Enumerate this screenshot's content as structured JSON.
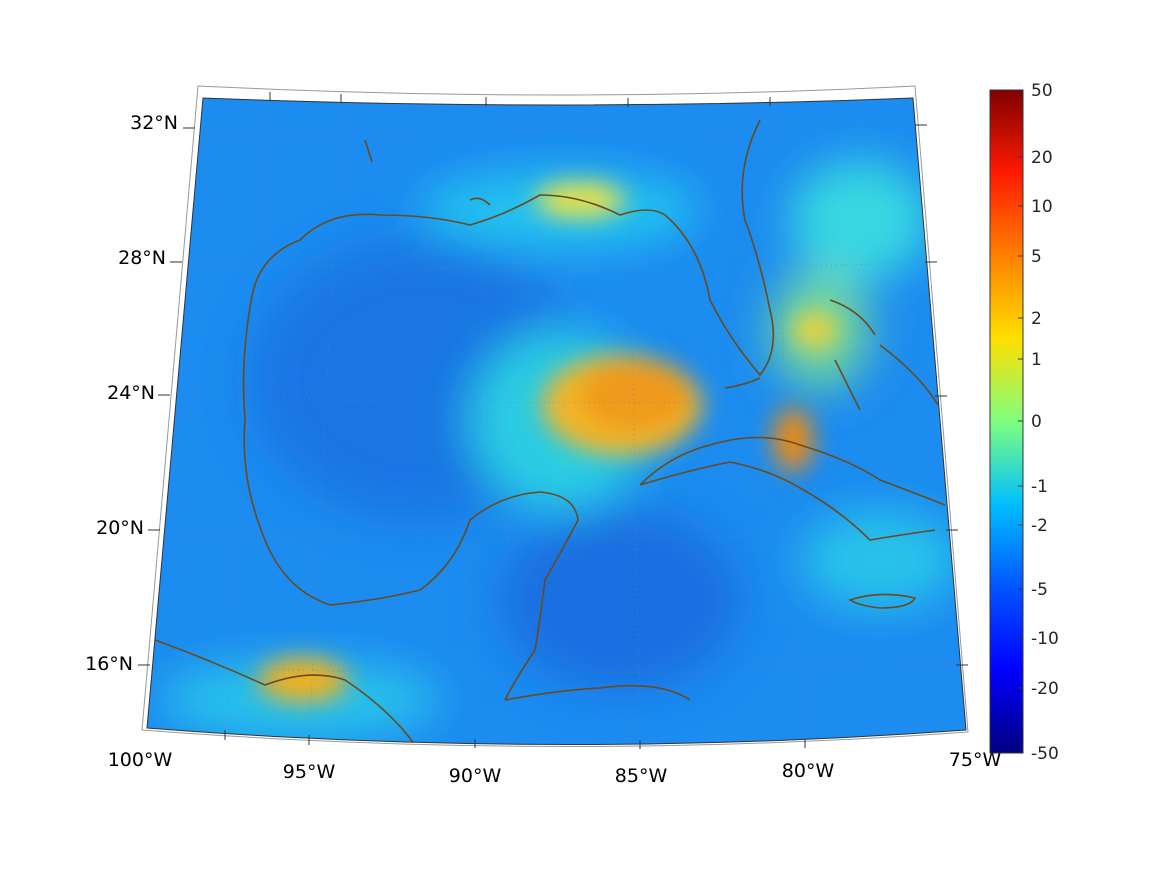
{
  "map": {
    "projection": "conic",
    "lon_range": [
      -100,
      -75
    ],
    "lat_range": [
      14,
      33
    ],
    "longitude_labels": [
      "100°W",
      "95°W",
      "90°W",
      "85°W",
      "80°W",
      "75°W"
    ],
    "latitude_labels": [
      "32°N",
      "28°N",
      "24°N",
      "20°N",
      "16°N"
    ],
    "grid": "dotted",
    "coastline_color": "#6b4a1e"
  },
  "colorbar": {
    "colormap": "jet",
    "scale": "symmetric-log",
    "tick_labels": [
      "50",
      "20",
      "10",
      "5",
      "2",
      "1",
      "0",
      "-1",
      "-2",
      "-5",
      "-10",
      "-20",
      "-50"
    ]
  },
  "field_hotspots": [
    {
      "region": "central Gulf of Mexico",
      "lon": -85.5,
      "lat": 24.0,
      "value": 3
    },
    {
      "region": "off northwest Cuba",
      "lon": -80.2,
      "lat": 23.0,
      "value": 4
    },
    {
      "region": "Gulf of Tehuantepec",
      "lon": -95.0,
      "lat": 16.0,
      "value": 3
    },
    {
      "region": "Florida panhandle coast",
      "lon": -87.5,
      "lat": 30.0,
      "value": 1
    },
    {
      "region": "Bahamas",
      "lon": -79.5,
      "lat": 26.5,
      "value": 1
    }
  ]
}
